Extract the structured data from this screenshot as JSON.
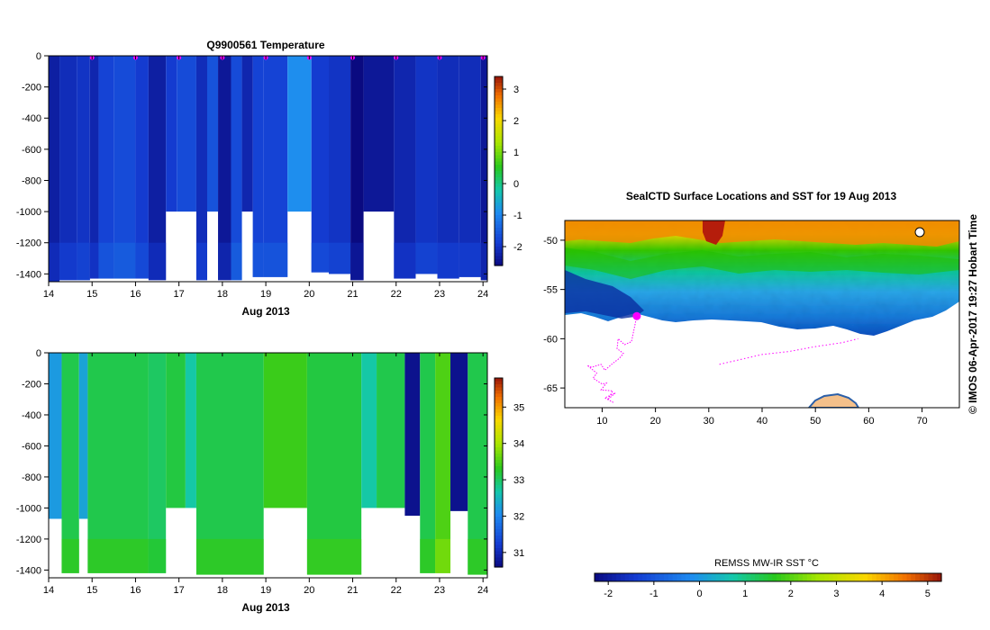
{
  "chart_data": [
    {
      "id": "temperature",
      "type": "heatmap",
      "title": "Q9900561  Temperature",
      "xlabel": "Aug 2013",
      "x_ticks": [
        "14",
        "15",
        "16",
        "17",
        "18",
        "19",
        "20",
        "21",
        "22",
        "23",
        "24"
      ],
      "y_ticks": [
        "0",
        "-200",
        "-400",
        "-600",
        "-800",
        "-1000",
        "-1200",
        "-1400"
      ],
      "xlim": [
        14,
        24.1
      ],
      "ylim": [
        -1450,
        0
      ],
      "colorbar_ticks": [
        "3",
        "2",
        "1",
        "0",
        "-1",
        "-2"
      ],
      "colorbar_range": [
        -2.6,
        3.4
      ],
      "profile_markers_x": [
        15.0,
        16.0,
        17.0,
        18.0,
        19.0,
        20.0,
        21.0,
        22.0,
        23.0,
        24.0
      ],
      "profiles": [
        {
          "x0": 14.0,
          "x1": 14.25,
          "v": -2.3,
          "bottom": -1450
        },
        {
          "x0": 14.25,
          "x1": 14.65,
          "v": -2.1,
          "bottom": -1440
        },
        {
          "x0": 14.65,
          "x1": 14.95,
          "v": -2.0,
          "bottom": -1440
        },
        {
          "x0": 14.95,
          "x1": 15.15,
          "v": -2.2,
          "bottom": -1430
        },
        {
          "x0": 15.15,
          "x1": 15.5,
          "v": -1.8,
          "bottom": -1430
        },
        {
          "x0": 15.5,
          "x1": 16.0,
          "v": -1.7,
          "bottom": -1430
        },
        {
          "x0": 16.0,
          "x1": 16.3,
          "v": -1.9,
          "bottom": -1430
        },
        {
          "x0": 16.3,
          "x1": 16.7,
          "v": -2.3,
          "bottom": -1440
        },
        {
          "x0": 16.7,
          "x1": 16.95,
          "v": -1.9,
          "bottom": -1000
        },
        {
          "x0": 16.95,
          "x1": 17.4,
          "v": -1.7,
          "bottom": -1000
        },
        {
          "x0": 17.4,
          "x1": 17.65,
          "v": -2.1,
          "bottom": -1440
        },
        {
          "x0": 17.65,
          "x1": 17.9,
          "v": -1.6,
          "bottom": -1000
        },
        {
          "x0": 17.9,
          "x1": 18.2,
          "v": -2.4,
          "bottom": -1440
        },
        {
          "x0": 18.2,
          "x1": 18.45,
          "v": -1.7,
          "bottom": -1440
        },
        {
          "x0": 18.45,
          "x1": 18.7,
          "v": -2.2,
          "bottom": -1000
        },
        {
          "x0": 18.7,
          "x1": 18.95,
          "v": -1.8,
          "bottom": -1420
        },
        {
          "x0": 18.95,
          "x1": 19.5,
          "v": -1.8,
          "bottom": -1420
        },
        {
          "x0": 19.5,
          "x1": 20.05,
          "v": -0.9,
          "bottom": -1000
        },
        {
          "x0": 20.05,
          "x1": 20.45,
          "v": -1.9,
          "bottom": -1390
        },
        {
          "x0": 20.45,
          "x1": 20.95,
          "v": -2.0,
          "bottom": -1400
        },
        {
          "x0": 20.95,
          "x1": 21.25,
          "v": -2.6,
          "bottom": -1440
        },
        {
          "x0": 21.25,
          "x1": 21.95,
          "v": -2.4,
          "bottom": -1000
        },
        {
          "x0": 21.95,
          "x1": 22.45,
          "v": -2.2,
          "bottom": -1430
        },
        {
          "x0": 22.45,
          "x1": 22.95,
          "v": -2.0,
          "bottom": -1400
        },
        {
          "x0": 22.95,
          "x1": 23.45,
          "v": -2.1,
          "bottom": -1430
        },
        {
          "x0": 23.45,
          "x1": 23.95,
          "v": -2.1,
          "bottom": -1420
        },
        {
          "x0": 23.95,
          "x1": 24.1,
          "v": -2.4,
          "bottom": -1440
        }
      ]
    },
    {
      "id": "salinity",
      "type": "heatmap",
      "title": "",
      "xlabel": "Aug 2013",
      "x_ticks": [
        "14",
        "15",
        "16",
        "17",
        "18",
        "19",
        "20",
        "21",
        "22",
        "23",
        "24"
      ],
      "y_ticks": [
        "0",
        "-200",
        "-400",
        "-600",
        "-800",
        "-1000",
        "-1200",
        "-1400"
      ],
      "xlim": [
        14,
        24.1
      ],
      "ylim": [
        -1450,
        0
      ],
      "colorbar_ticks": [
        "35",
        "34",
        "33",
        "32",
        "31"
      ],
      "colorbar_range": [
        30.6,
        35.8
      ],
      "profiles": [
        {
          "x0": 14.0,
          "x1": 14.3,
          "v": 32.2,
          "bottom": -1070
        },
        {
          "x0": 14.3,
          "x1": 14.7,
          "v": 33.1,
          "bottom": -1420
        },
        {
          "x0": 14.7,
          "x1": 14.9,
          "v": 32.3,
          "bottom": -1070
        },
        {
          "x0": 14.9,
          "x1": 16.3,
          "v": 33.1,
          "bottom": -1420
        },
        {
          "x0": 16.3,
          "x1": 16.7,
          "v": 33.0,
          "bottom": -1420
        },
        {
          "x0": 16.7,
          "x1": 17.15,
          "v": 33.15,
          "bottom": -1000
        },
        {
          "x0": 17.15,
          "x1": 17.4,
          "v": 32.7,
          "bottom": -1000
        },
        {
          "x0": 17.4,
          "x1": 18.95,
          "v": 33.1,
          "bottom": -1430
        },
        {
          "x0": 18.95,
          "x1": 19.95,
          "v": 33.4,
          "bottom": -1000
        },
        {
          "x0": 19.95,
          "x1": 21.2,
          "v": 33.15,
          "bottom": -1430
        },
        {
          "x0": 21.2,
          "x1": 21.55,
          "v": 32.7,
          "bottom": -1000
        },
        {
          "x0": 21.55,
          "x1": 22.2,
          "v": 33.1,
          "bottom": -1000
        },
        {
          "x0": 22.2,
          "x1": 22.55,
          "v": 30.7,
          "bottom": -1050
        },
        {
          "x0": 22.55,
          "x1": 22.9,
          "v": 33.1,
          "bottom": -1420
        },
        {
          "x0": 22.9,
          "x1": 23.25,
          "v": 33.5,
          "bottom": -1420
        },
        {
          "x0": 23.25,
          "x1": 23.65,
          "v": 30.7,
          "bottom": -1020
        },
        {
          "x0": 23.65,
          "x1": 24.1,
          "v": 33.1,
          "bottom": -1430
        }
      ]
    },
    {
      "id": "sst-map",
      "type": "heatmap",
      "title": "SealCTD Surface Locations and SST for 19 Aug 2013",
      "x_ticks": [
        "10",
        "20",
        "30",
        "40",
        "50",
        "60",
        "70"
      ],
      "y_ticks": [
        "-50",
        "-55",
        "-60",
        "-65"
      ],
      "xlim": [
        3,
        77
      ],
      "ylim": [
        -67,
        -48
      ],
      "colorbar_label": "REMSS MW-IR SST °C",
      "colorbar_ticks": [
        "-2",
        "-1",
        "0",
        "1",
        "2",
        "3",
        "4",
        "5"
      ],
      "colorbar_range": [
        -2.3,
        5.3
      ],
      "current_position": {
        "lon": 16.5,
        "lat": -57.7
      },
      "track": [
        [
          16.5,
          -57.7
        ],
        [
          16.0,
          -59.0
        ],
        [
          15.5,
          -60.3
        ],
        [
          14.2,
          -60.6
        ],
        [
          13.0,
          -60.0
        ],
        [
          12.8,
          -61.0
        ],
        [
          14.0,
          -61.5
        ],
        [
          13.2,
          -62.0
        ],
        [
          12.0,
          -62.5
        ],
        [
          10.5,
          -63.2
        ],
        [
          9.8,
          -62.6
        ],
        [
          8.0,
          -62.9
        ],
        [
          7.2,
          -62.7
        ],
        [
          9.0,
          -63.5
        ],
        [
          8.3,
          -64.0
        ],
        [
          10.0,
          -64.6
        ],
        [
          10.8,
          -64.5
        ],
        [
          9.8,
          -65.2
        ],
        [
          12.0,
          -65.3
        ],
        [
          11.0,
          -66.2
        ],
        [
          12.5,
          -65.5
        ],
        [
          10.5,
          -66.0
        ],
        [
          12.2,
          -66.5
        ]
      ],
      "track2": [
        [
          32.0,
          -62.6
        ],
        [
          36.0,
          -62.1
        ],
        [
          40.0,
          -61.6
        ],
        [
          45.0,
          -61.3
        ],
        [
          50.0,
          -60.8
        ],
        [
          55.0,
          -60.4
        ],
        [
          58.0,
          -60.0
        ]
      ]
    }
  ],
  "stamp": "©  IMOS 06-Apr-2017 19:27 Hobart Time",
  "colors": {
    "track": "#ff00ff",
    "ice_shelf": "#f4c08a",
    "land_outline": "#2b5fa8"
  }
}
